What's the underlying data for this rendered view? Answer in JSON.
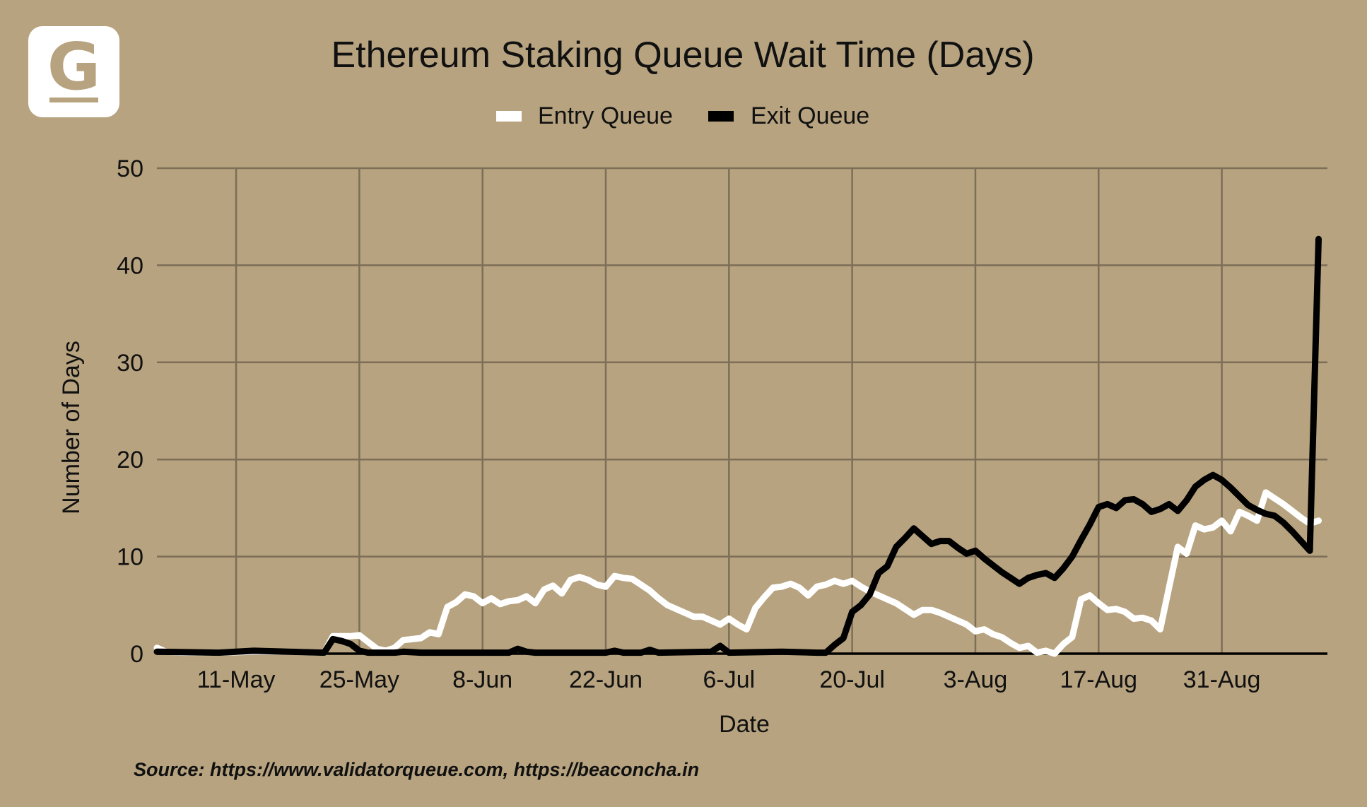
{
  "logo": {
    "letter": "G"
  },
  "source_text": "Source: https://www.validatorqueue.com, https://beaconcha.in",
  "colors": {
    "background": "#b7a37f",
    "grid": "#7d6e58",
    "entry": "#ffffff",
    "exit": "#000000"
  },
  "chart_data": {
    "type": "line",
    "title": "Ethereum Staking Queue Wait Time (Days)",
    "xlabel": "Date",
    "ylabel": "Number of Days",
    "ylim": [
      0,
      50
    ],
    "yticks": [
      0,
      10,
      20,
      30,
      40,
      50
    ],
    "xticks": [
      "11-May",
      "25-May",
      "8-Jun",
      "22-Jun",
      "6-Jul",
      "20-Jul",
      "3-Aug",
      "17-Aug",
      "31-Aug"
    ],
    "x_range": [
      "2025-05-02",
      "2025-09-12"
    ],
    "grid": true,
    "legend_position": "top",
    "series": [
      {
        "name": "Entry Queue",
        "color": "#ffffff",
        "points": [
          [
            "2025-05-02",
            0.6
          ],
          [
            "2025-05-03",
            0.2
          ],
          [
            "2025-05-05",
            0.1
          ],
          [
            "2025-05-09",
            0.1
          ],
          [
            "2025-05-13",
            0.2
          ],
          [
            "2025-05-17",
            0.2
          ],
          [
            "2025-05-21",
            0.1
          ],
          [
            "2025-05-22",
            1.8
          ],
          [
            "2025-05-24",
            1.8
          ],
          [
            "2025-05-25",
            1.9
          ],
          [
            "2025-05-26",
            1.2
          ],
          [
            "2025-05-27",
            0.5
          ],
          [
            "2025-05-28",
            0.3
          ],
          [
            "2025-05-29",
            0.6
          ],
          [
            "2025-05-30",
            1.4
          ],
          [
            "2025-06-01",
            1.6
          ],
          [
            "2025-06-02",
            2.2
          ],
          [
            "2025-06-03",
            2.0
          ],
          [
            "2025-06-04",
            4.8
          ],
          [
            "2025-06-05",
            5.3
          ],
          [
            "2025-06-06",
            6.1
          ],
          [
            "2025-06-07",
            5.9
          ],
          [
            "2025-06-08",
            5.2
          ],
          [
            "2025-06-09",
            5.7
          ],
          [
            "2025-06-10",
            5.1
          ],
          [
            "2025-06-11",
            5.4
          ],
          [
            "2025-06-12",
            5.5
          ],
          [
            "2025-06-13",
            5.9
          ],
          [
            "2025-06-14",
            5.2
          ],
          [
            "2025-06-15",
            6.6
          ],
          [
            "2025-06-16",
            7.0
          ],
          [
            "2025-06-17",
            6.2
          ],
          [
            "2025-06-18",
            7.6
          ],
          [
            "2025-06-19",
            7.9
          ],
          [
            "2025-06-20",
            7.6
          ],
          [
            "2025-06-21",
            7.1
          ],
          [
            "2025-06-22",
            6.9
          ],
          [
            "2025-06-23",
            8.0
          ],
          [
            "2025-06-24",
            7.8
          ],
          [
            "2025-06-25",
            7.7
          ],
          [
            "2025-06-26",
            7.1
          ],
          [
            "2025-06-27",
            6.5
          ],
          [
            "2025-06-28",
            5.7
          ],
          [
            "2025-06-29",
            5.0
          ],
          [
            "2025-06-30",
            4.6
          ],
          [
            "2025-07-01",
            4.2
          ],
          [
            "2025-07-02",
            3.8
          ],
          [
            "2025-07-03",
            3.8
          ],
          [
            "2025-07-04",
            3.4
          ],
          [
            "2025-07-05",
            3.0
          ],
          [
            "2025-07-06",
            3.6
          ],
          [
            "2025-07-07",
            3.0
          ],
          [
            "2025-07-08",
            2.5
          ],
          [
            "2025-07-09",
            4.7
          ],
          [
            "2025-07-10",
            5.8
          ],
          [
            "2025-07-11",
            6.8
          ],
          [
            "2025-07-12",
            6.9
          ],
          [
            "2025-07-13",
            7.2
          ],
          [
            "2025-07-14",
            6.8
          ],
          [
            "2025-07-15",
            6.0
          ],
          [
            "2025-07-16",
            6.9
          ],
          [
            "2025-07-17",
            7.1
          ],
          [
            "2025-07-18",
            7.5
          ],
          [
            "2025-07-19",
            7.2
          ],
          [
            "2025-07-20",
            7.5
          ],
          [
            "2025-07-21",
            6.9
          ],
          [
            "2025-07-22",
            6.4
          ],
          [
            "2025-07-23",
            6.0
          ],
          [
            "2025-07-24",
            5.6
          ],
          [
            "2025-07-25",
            5.2
          ],
          [
            "2025-07-26",
            4.6
          ],
          [
            "2025-07-27",
            4.0
          ],
          [
            "2025-07-28",
            4.5
          ],
          [
            "2025-07-29",
            4.5
          ],
          [
            "2025-07-30",
            4.2
          ],
          [
            "2025-07-31",
            3.8
          ],
          [
            "2025-08-01",
            3.4
          ],
          [
            "2025-08-02",
            3.0
          ],
          [
            "2025-08-03",
            2.3
          ],
          [
            "2025-08-04",
            2.5
          ],
          [
            "2025-08-05",
            2.0
          ],
          [
            "2025-08-06",
            1.7
          ],
          [
            "2025-08-07",
            1.1
          ],
          [
            "2025-08-08",
            0.6
          ],
          [
            "2025-08-09",
            0.8
          ],
          [
            "2025-08-10",
            0.1
          ],
          [
            "2025-08-11",
            0.3
          ],
          [
            "2025-08-12",
            0.0
          ],
          [
            "2025-08-13",
            1.0
          ],
          [
            "2025-08-14",
            1.7
          ],
          [
            "2025-08-15",
            5.6
          ],
          [
            "2025-08-16",
            6.0
          ],
          [
            "2025-08-17",
            5.2
          ],
          [
            "2025-08-18",
            4.5
          ],
          [
            "2025-08-19",
            4.6
          ],
          [
            "2025-08-20",
            4.3
          ],
          [
            "2025-08-21",
            3.6
          ],
          [
            "2025-08-22",
            3.7
          ],
          [
            "2025-08-23",
            3.4
          ],
          [
            "2025-08-24",
            2.5
          ],
          [
            "2025-08-25",
            6.8
          ],
          [
            "2025-08-26",
            11.0
          ],
          [
            "2025-08-27",
            10.3
          ],
          [
            "2025-08-28",
            13.2
          ],
          [
            "2025-08-29",
            12.8
          ],
          [
            "2025-08-30",
            13.0
          ],
          [
            "2025-08-31",
            13.7
          ],
          [
            "2025-09-01",
            12.6
          ],
          [
            "2025-09-02",
            14.6
          ],
          [
            "2025-09-03",
            14.2
          ],
          [
            "2025-09-04",
            13.7
          ],
          [
            "2025-09-05",
            16.6
          ],
          [
            "2025-09-06",
            16.0
          ],
          [
            "2025-09-07",
            15.4
          ],
          [
            "2025-09-08",
            14.7
          ],
          [
            "2025-09-09",
            14.0
          ],
          [
            "2025-09-10",
            13.4
          ],
          [
            "2025-09-11",
            13.7
          ]
        ]
      },
      {
        "name": "Exit Queue",
        "color": "#000000",
        "points": [
          [
            "2025-05-02",
            0.2
          ],
          [
            "2025-05-09",
            0.1
          ],
          [
            "2025-05-11",
            0.2
          ],
          [
            "2025-05-13",
            0.3
          ],
          [
            "2025-05-17",
            0.2
          ],
          [
            "2025-05-21",
            0.1
          ],
          [
            "2025-05-22",
            1.5
          ],
          [
            "2025-05-23",
            1.3
          ],
          [
            "2025-05-24",
            1.0
          ],
          [
            "2025-05-25",
            0.3
          ],
          [
            "2025-05-26",
            0.1
          ],
          [
            "2025-05-29",
            0.1
          ],
          [
            "2025-05-30",
            0.2
          ],
          [
            "2025-06-01",
            0.1
          ],
          [
            "2025-06-11",
            0.1
          ],
          [
            "2025-06-12",
            0.5
          ],
          [
            "2025-06-13",
            0.2
          ],
          [
            "2025-06-14",
            0.1
          ],
          [
            "2025-06-22",
            0.1
          ],
          [
            "2025-06-23",
            0.3
          ],
          [
            "2025-06-24",
            0.1
          ],
          [
            "2025-06-26",
            0.1
          ],
          [
            "2025-06-27",
            0.4
          ],
          [
            "2025-06-28",
            0.1
          ],
          [
            "2025-07-04",
            0.2
          ],
          [
            "2025-07-05",
            0.8
          ],
          [
            "2025-07-06",
            0.1
          ],
          [
            "2025-07-12",
            0.2
          ],
          [
            "2025-07-16",
            0.1
          ],
          [
            "2025-07-17",
            0.1
          ],
          [
            "2025-07-18",
            0.9
          ],
          [
            "2025-07-19",
            1.6
          ],
          [
            "2025-07-20",
            4.3
          ],
          [
            "2025-07-21",
            5.0
          ],
          [
            "2025-07-22",
            6.1
          ],
          [
            "2025-07-23",
            8.3
          ],
          [
            "2025-07-24",
            9.0
          ],
          [
            "2025-07-25",
            11.0
          ],
          [
            "2025-07-26",
            11.9
          ],
          [
            "2025-07-27",
            12.9
          ],
          [
            "2025-07-28",
            12.1
          ],
          [
            "2025-07-29",
            11.3
          ],
          [
            "2025-07-30",
            11.6
          ],
          [
            "2025-07-31",
            11.6
          ],
          [
            "2025-08-01",
            10.9
          ],
          [
            "2025-08-02",
            10.3
          ],
          [
            "2025-08-03",
            10.6
          ],
          [
            "2025-08-04",
            9.8
          ],
          [
            "2025-08-05",
            9.1
          ],
          [
            "2025-08-06",
            8.4
          ],
          [
            "2025-08-07",
            7.8
          ],
          [
            "2025-08-08",
            7.2
          ],
          [
            "2025-08-09",
            7.8
          ],
          [
            "2025-08-10",
            8.1
          ],
          [
            "2025-08-11",
            8.3
          ],
          [
            "2025-08-12",
            7.8
          ],
          [
            "2025-08-13",
            8.8
          ],
          [
            "2025-08-14",
            10.0
          ],
          [
            "2025-08-15",
            11.7
          ],
          [
            "2025-08-16",
            13.3
          ],
          [
            "2025-08-17",
            15.1
          ],
          [
            "2025-08-18",
            15.4
          ],
          [
            "2025-08-19",
            15.0
          ],
          [
            "2025-08-20",
            15.8
          ],
          [
            "2025-08-21",
            15.9
          ],
          [
            "2025-08-22",
            15.4
          ],
          [
            "2025-08-23",
            14.6
          ],
          [
            "2025-08-24",
            14.9
          ],
          [
            "2025-08-25",
            15.4
          ],
          [
            "2025-08-26",
            14.7
          ],
          [
            "2025-08-27",
            15.8
          ],
          [
            "2025-08-28",
            17.2
          ],
          [
            "2025-08-29",
            17.9
          ],
          [
            "2025-08-30",
            18.4
          ],
          [
            "2025-08-31",
            17.9
          ],
          [
            "2025-09-01",
            17.1
          ],
          [
            "2025-09-02",
            16.2
          ],
          [
            "2025-09-03",
            15.3
          ],
          [
            "2025-09-04",
            14.8
          ],
          [
            "2025-09-05",
            14.4
          ],
          [
            "2025-09-06",
            14.2
          ],
          [
            "2025-09-07",
            13.5
          ],
          [
            "2025-09-08",
            12.6
          ],
          [
            "2025-09-09",
            11.6
          ],
          [
            "2025-09-10",
            10.6
          ],
          [
            "2025-09-11",
            42.7
          ]
        ]
      }
    ]
  }
}
